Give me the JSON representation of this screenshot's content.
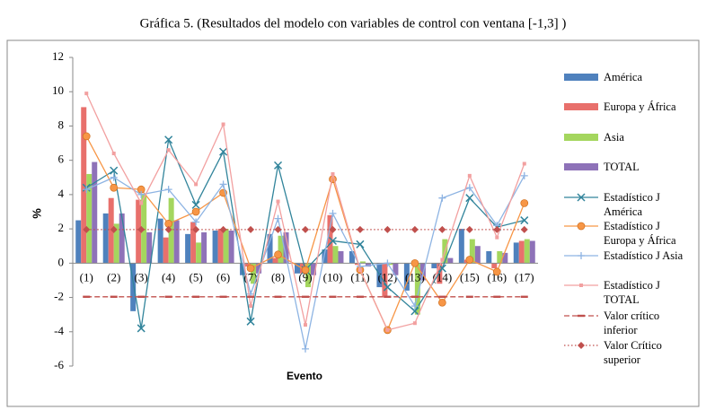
{
  "chart_data": {
    "type": "bar",
    "title": "Gráfica 5. (Resultados del modelo con variables de control con ventana [-1,3] )",
    "x_label": "Evento",
    "y_label": "%",
    "categories": [
      "(1)",
      "(2)",
      "(3)",
      "(4)",
      "(5)",
      "(6)",
      "(7)",
      "(8)",
      "(9)",
      "(10)",
      "(11)",
      "(12)",
      "(13)",
      "(14)",
      "(15)",
      "(16)",
      "(17)"
    ],
    "ylim": [
      -6,
      12
    ],
    "yticks": [
      -6,
      -4,
      -2,
      0,
      2,
      4,
      6,
      8,
      10,
      12
    ],
    "series": [
      {
        "name": "América",
        "type": "bar",
        "color": "#4f81bd",
        "values": [
          2.5,
          2.9,
          -2.8,
          2.6,
          1.7,
          1.9,
          -0.7,
          1.7,
          -0.6,
          0.8,
          0.7,
          -1.4,
          -1.6,
          -0.3,
          2.0,
          0.7,
          1.2
        ]
      },
      {
        "name": "Europa y África",
        "type": "bar",
        "color": "#e8706c",
        "values": [
          9.1,
          3.8,
          3.7,
          1.5,
          2.4,
          2.0,
          -0.2,
          0.3,
          -0.6,
          2.8,
          -0.1,
          -2.0,
          0.0,
          -1.2,
          0.2,
          -0.3,
          1.3
        ]
      },
      {
        "name": "Asia",
        "type": "bar",
        "color": "#a4d65e",
        "values": [
          5.2,
          2.3,
          4.0,
          3.8,
          1.2,
          2.0,
          -1.2,
          1.6,
          -1.4,
          1.0,
          0.1,
          -0.1,
          -3.0,
          1.4,
          1.4,
          0.7,
          1.4
        ]
      },
      {
        "name": "TOTAL",
        "type": "bar",
        "color": "#8e72b8",
        "values": [
          5.9,
          2.9,
          1.8,
          2.5,
          1.8,
          1.9,
          -0.6,
          1.8,
          -0.7,
          0.7,
          -0.2,
          -0.7,
          -1.0,
          0.3,
          1.0,
          0.6,
          1.3
        ]
      },
      {
        "name": "Estadístico J América",
        "type": "line",
        "marker": "x",
        "color": "#31849b",
        "values": [
          4.4,
          5.4,
          -3.8,
          7.2,
          3.4,
          6.5,
          -3.4,
          5.7,
          -0.4,
          1.3,
          1.1,
          -1.4,
          -2.8,
          -0.3,
          3.8,
          2.1,
          2.5
        ]
      },
      {
        "name": "Estadístico J Europa y África",
        "type": "line",
        "marker": "circle",
        "color": "#f79646",
        "values": [
          7.4,
          4.4,
          4.3,
          2.3,
          3.0,
          4.1,
          -0.3,
          0.5,
          -0.4,
          4.9,
          -0.4,
          -3.9,
          0.0,
          -2.3,
          0.2,
          -0.5,
          3.5
        ]
      },
      {
        "name": "Estadístico J Asia",
        "type": "line",
        "marker": "plus",
        "color": "#8eb4e3",
        "values": [
          4.3,
          5.0,
          4.0,
          4.3,
          2.4,
          4.6,
          -1.8,
          2.6,
          -5.0,
          2.9,
          -0.2,
          0.0,
          -2.5,
          3.8,
          4.4,
          2.2,
          5.1
        ]
      },
      {
        "name": "Estadístico J TOTAL",
        "type": "line",
        "marker": "square",
        "color": "#f2a0a0",
        "values": [
          9.9,
          6.4,
          3.5,
          6.6,
          4.6,
          8.1,
          -2.5,
          3.6,
          -3.6,
          5.2,
          -0.4,
          -3.9,
          -3.5,
          0.2,
          5.1,
          1.5,
          5.8
        ]
      },
      {
        "name": "Valor crítico inferior",
        "type": "line",
        "marker": "dash",
        "dash": "dashed",
        "color": "#c0504d",
        "values": [
          -1.96,
          -1.96,
          -1.96,
          -1.96,
          -1.96,
          -1.96,
          -1.96,
          -1.96,
          -1.96,
          -1.96,
          -1.96,
          -1.96,
          -1.96,
          -1.96,
          -1.96,
          -1.96,
          -1.96
        ]
      },
      {
        "name": "Valor Crítico superior",
        "type": "line",
        "marker": "diamond",
        "dash": "dotted",
        "color": "#c0504d",
        "values": [
          1.96,
          1.96,
          1.96,
          1.96,
          1.96,
          1.96,
          1.96,
          1.96,
          1.96,
          1.96,
          1.96,
          1.96,
          1.96,
          1.96,
          1.96,
          1.96,
          1.96
        ]
      }
    ]
  }
}
